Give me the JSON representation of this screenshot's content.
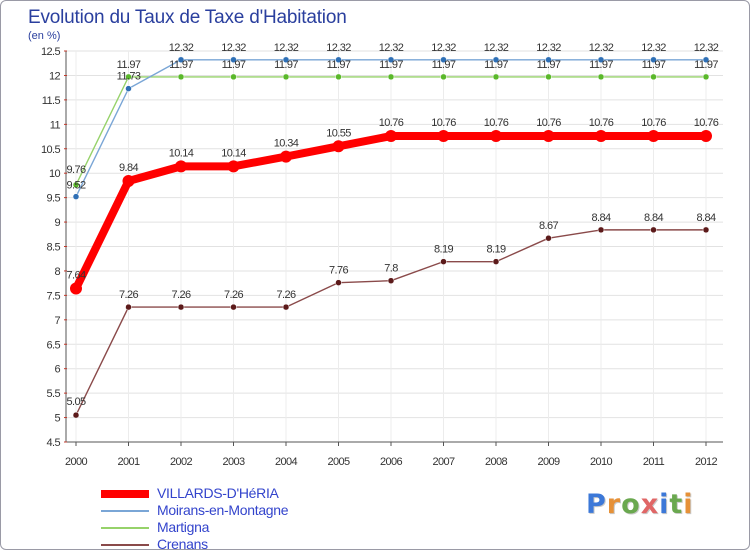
{
  "header": {
    "title": "Evolution du Taux de Taxe d'Habitation",
    "unit": "(en %)"
  },
  "logo": {
    "letters": [
      "P",
      "r",
      "o",
      "x",
      "i",
      "t",
      "i"
    ],
    "colors": [
      "#3c78d8",
      "#e69138",
      "#6aa84f",
      "#e06666",
      "#3c78d8",
      "#6aa84f",
      "#e69138"
    ]
  },
  "chart_data": {
    "type": "line",
    "title": "Evolution du Taux de Taxe d'Habitation",
    "ylabel": "(en %)",
    "xlabel": "",
    "ylim": [
      4.5,
      12.5
    ],
    "yticks": [
      4.5,
      5,
      5.5,
      6,
      6.5,
      7,
      7.5,
      8,
      8.5,
      9,
      9.5,
      10,
      10.5,
      11,
      11.5,
      12,
      12.5
    ],
    "ytick_labels": [
      "4.5",
      "5",
      "5.5",
      "6",
      "6.5",
      "7",
      "7.5",
      "8",
      "8.5",
      "9",
      "9.5",
      "10",
      "10.5",
      "11",
      "11.5",
      "12",
      "12.5"
    ],
    "categories": [
      "2000",
      "2001",
      "2002",
      "2003",
      "2004",
      "2005",
      "2006",
      "2007",
      "2008",
      "2009",
      "2010",
      "2011",
      "2012"
    ],
    "grid": true,
    "legend_position": "bottom-left",
    "series": [
      {
        "name": "VILLARDS-D'HéRIA",
        "color": "#ff0000",
        "emphasis": true,
        "values": [
          7.64,
          9.84,
          10.14,
          10.14,
          10.34,
          10.55,
          10.76,
          10.76,
          10.76,
          10.76,
          10.76,
          10.76,
          10.76
        ],
        "labels": [
          "7.64",
          "9.84",
          "10.14",
          "10.14",
          "10.34",
          "10.55",
          "10.76",
          "10.76",
          "10.76",
          "10.76",
          "10.76",
          "10.76",
          "10.76"
        ]
      },
      {
        "name": "Moirans-en-Montagne",
        "color": "#7aa6d6",
        "marker_color": "#2e6fb5",
        "values": [
          9.52,
          11.73,
          12.32,
          12.32,
          12.32,
          12.32,
          12.32,
          12.32,
          12.32,
          12.32,
          12.32,
          12.32,
          12.32
        ],
        "labels": [
          "9.52",
          "11.73",
          "12.32",
          "12.32",
          "12.32",
          "12.32",
          "12.32",
          "12.32",
          "12.32",
          "12.32",
          "12.32",
          "12.32",
          "12.32"
        ]
      },
      {
        "name": "Martigna",
        "color": "#96d26a",
        "marker_color": "#5ab82a",
        "values": [
          9.76,
          11.97,
          11.97,
          11.97,
          11.97,
          11.97,
          11.97,
          11.97,
          11.97,
          11.97,
          11.97,
          11.97,
          11.97
        ],
        "labels": [
          "9.76",
          "11.97",
          "11.97",
          "11.97",
          "11.97",
          "11.97",
          "11.97",
          "11.97",
          "11.97",
          "11.97",
          "11.97",
          "11.97",
          "11.97"
        ]
      },
      {
        "name": "Crenans",
        "color": "#8a4a4a",
        "marker_color": "#5c1a1a",
        "values": [
          5.05,
          7.26,
          7.26,
          7.26,
          7.26,
          7.76,
          7.8,
          8.19,
          8.19,
          8.67,
          8.84,
          8.84,
          8.84
        ],
        "labels": [
          "5.05",
          "7.26",
          "7.26",
          "7.26",
          "7.26",
          "7.76",
          "7.8",
          "8.19",
          "8.19",
          "8.67",
          "8.84",
          "8.84",
          "8.84"
        ]
      }
    ]
  }
}
